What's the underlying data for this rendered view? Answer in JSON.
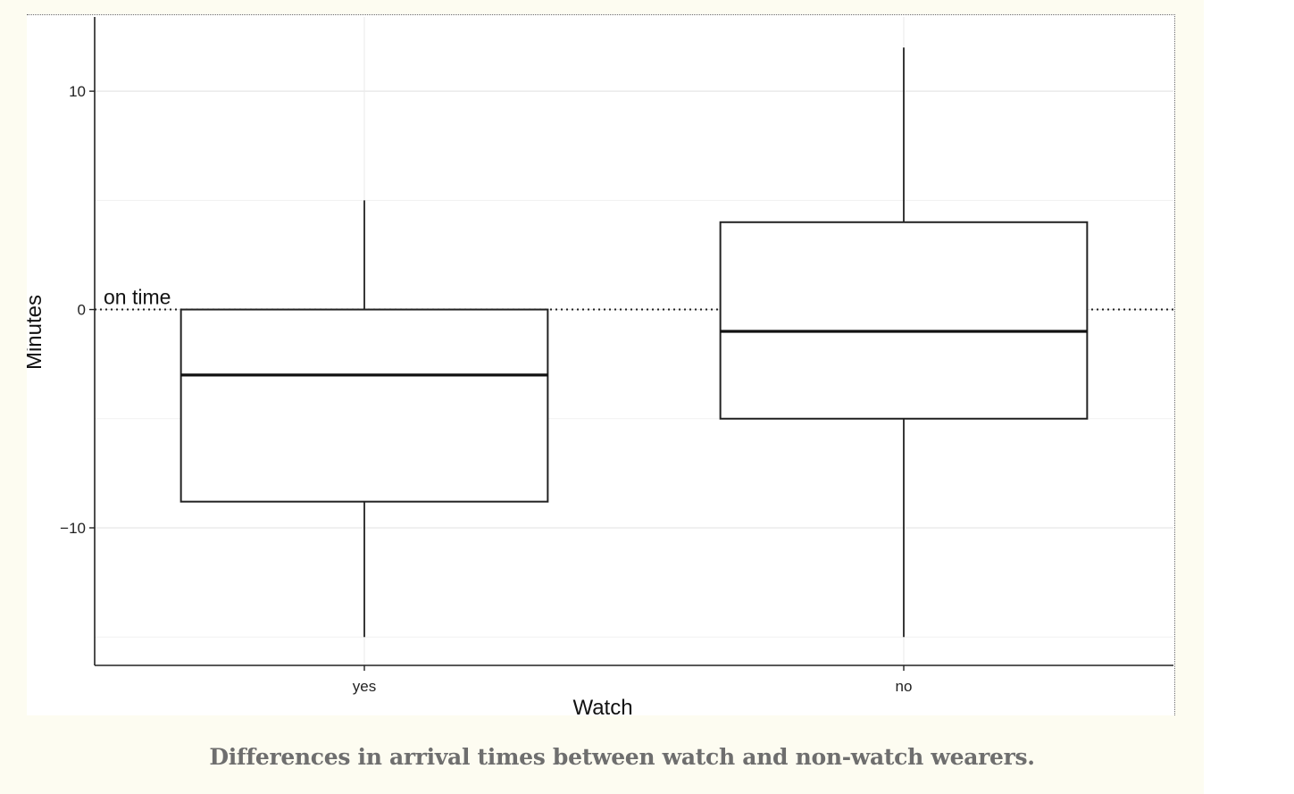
{
  "caption": "Differences in arrival times between watch and non-watch wearers.",
  "chart_data": {
    "type": "boxplot",
    "xlabel": "Watch",
    "ylabel": "Minutes",
    "categories": [
      "yes",
      "no"
    ],
    "ylim": [
      -16.3,
      13.4
    ],
    "yticks": [
      {
        "value": 10,
        "label": "10"
      },
      {
        "value": 0,
        "label": "0"
      },
      {
        "value": -10,
        "label": "−10"
      }
    ],
    "minor_gridlines": [
      -15,
      -5,
      5
    ],
    "grid": true,
    "boxes": [
      {
        "category": "yes",
        "min": -15,
        "q1": -8.8,
        "median": -3,
        "q3": 0,
        "max": 5
      },
      {
        "category": "no",
        "min": -15,
        "q1": -5,
        "median": -1,
        "q3": 4,
        "max": 12
      }
    ],
    "reference_line": {
      "value": 0,
      "style": "dotted",
      "label": "on time"
    }
  }
}
